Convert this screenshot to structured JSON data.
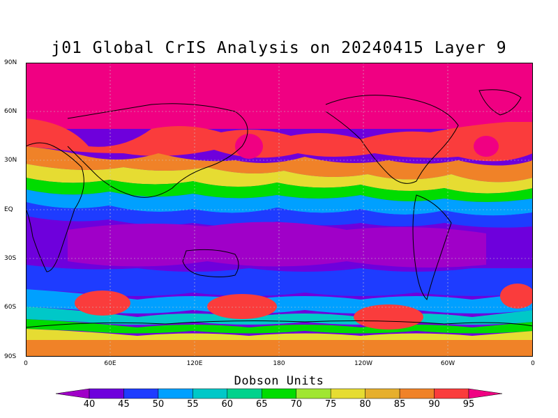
{
  "title": "j01 Global CrIS Analysis on 20240415 Layer 9",
  "axes": {
    "lat_labels": [
      "90N",
      "60N",
      "30N",
      "EQ",
      "30S",
      "60S",
      "90S"
    ],
    "lon_labels": [
      "0",
      "60E",
      "120E",
      "180",
      "120W",
      "60W",
      "0"
    ]
  },
  "colorbar": {
    "title": "Dobson Units",
    "levels": [
      "40",
      "45",
      "50",
      "55",
      "60",
      "65",
      "70",
      "75",
      "80",
      "85",
      "90",
      "95"
    ],
    "colors": [
      "#a000c8",
      "#6e00dc",
      "#1e3cff",
      "#00a0ff",
      "#00c8c8",
      "#00d28c",
      "#00dc00",
      "#a0e632",
      "#e6dc32",
      "#e6af2d",
      "#f08228",
      "#fa3c3c",
      "#f00082"
    ]
  }
}
